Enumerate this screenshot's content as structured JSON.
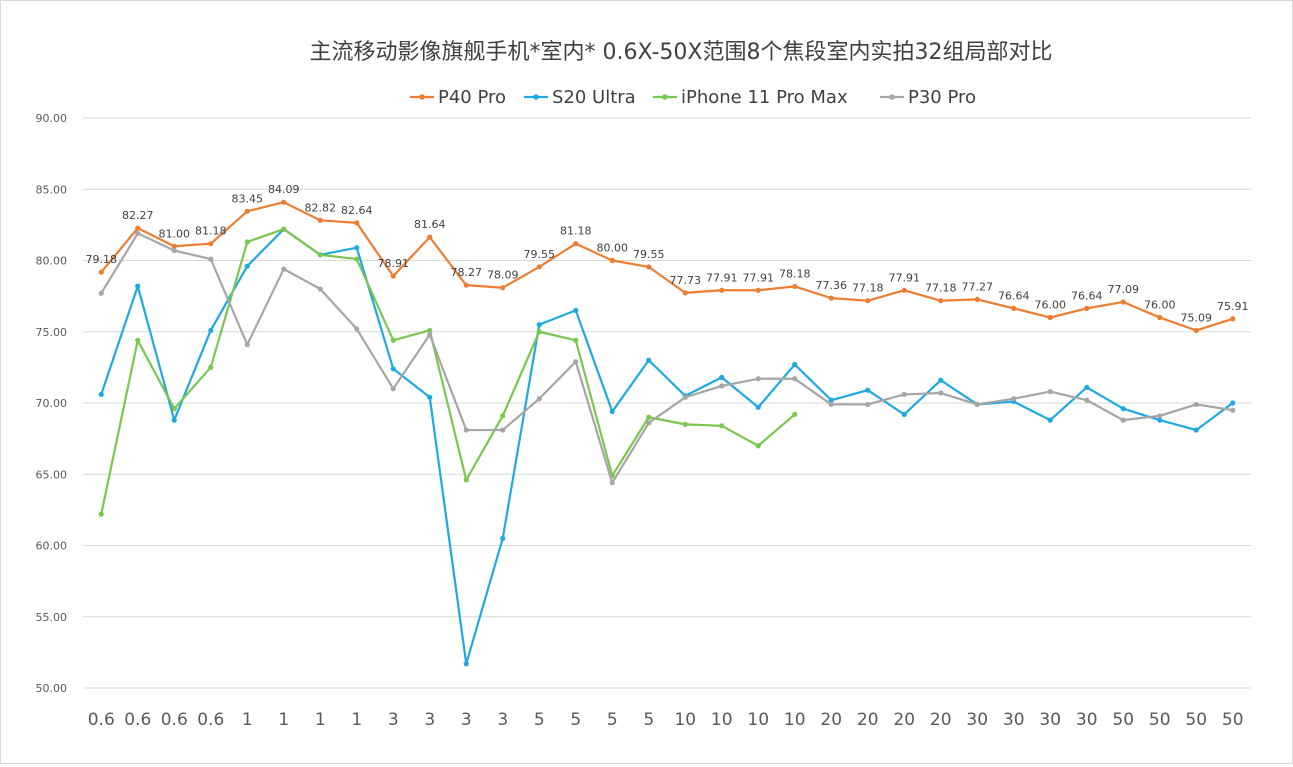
{
  "chart_data": {
    "type": "line",
    "title": "主流移动影像旗舰手机*室内* 0.6X-50X范围8个焦段室内实拍32组局部对比",
    "xlabel": "",
    "ylabel": "",
    "categories": [
      "0.6",
      "0.6",
      "0.6",
      "0.6",
      "1",
      "1",
      "1",
      "1",
      "3",
      "3",
      "3",
      "3",
      "5",
      "5",
      "5",
      "5",
      "10",
      "10",
      "10",
      "10",
      "20",
      "20",
      "20",
      "20",
      "30",
      "30",
      "30",
      "30",
      "50",
      "50",
      "50",
      "50"
    ],
    "ylim": [
      50,
      90
    ],
    "yticks": [
      "50.00",
      "55.00",
      "60.00",
      "65.00",
      "70.00",
      "75.00",
      "80.00",
      "85.00",
      "90.00"
    ],
    "grid": true,
    "legend_position": "top",
    "series": [
      {
        "name": "P40 Pro",
        "color": "#ed7d31",
        "values": [
          79.18,
          82.27,
          81.0,
          81.18,
          83.45,
          84.09,
          82.82,
          82.64,
          78.91,
          81.64,
          78.27,
          78.09,
          79.55,
          81.18,
          80.0,
          79.55,
          77.73,
          77.91,
          77.91,
          78.18,
          77.36,
          77.18,
          77.91,
          77.18,
          77.27,
          76.64,
          76.0,
          76.64,
          77.09,
          76.0,
          75.09,
          75.91
        ],
        "data_labels": [
          "79.18",
          "82.27",
          "81.00",
          "81.18",
          "83.45",
          "84.09",
          "82.82",
          "82.64",
          "78.91",
          "81.64",
          "78.27",
          "78.09",
          "79.55",
          "81.18",
          "80.00",
          "79.55",
          "77.73",
          "77.91",
          "77.91",
          "78.18",
          "77.36",
          "77.18",
          "77.91",
          "77.18",
          "77.27",
          "76.64",
          "76.00",
          "76.64",
          "77.09",
          "76.00",
          "75.09",
          "75.91"
        ]
      },
      {
        "name": "S20 Ultra",
        "color": "#1fa9e1",
        "values": [
          70.6,
          78.2,
          68.8,
          75.1,
          79.6,
          82.2,
          80.4,
          80.9,
          72.4,
          70.4,
          51.7,
          60.5,
          75.5,
          76.5,
          69.4,
          73.0,
          70.5,
          71.8,
          69.7,
          72.7,
          70.2,
          70.9,
          69.2,
          71.6,
          69.9,
          70.1,
          68.8,
          71.1,
          69.6,
          68.8,
          68.1,
          70.0
        ]
      },
      {
        "name": "iPhone 11 Pro Max",
        "color": "#7ac74f",
        "values": [
          62.2,
          74.4,
          69.6,
          72.5,
          81.3,
          82.2,
          80.4,
          80.1,
          74.4,
          75.1,
          64.6,
          69.1,
          75.0,
          74.4,
          64.9,
          69.0,
          68.5,
          68.4,
          67.0,
          69.2,
          null,
          null,
          null,
          null,
          null,
          null,
          null,
          null,
          null,
          null,
          null,
          null
        ]
      },
      {
        "name": "P30 Pro",
        "color": "#a6a6a6",
        "values": [
          77.7,
          81.9,
          80.7,
          80.1,
          74.1,
          79.4,
          78.0,
          75.2,
          71.0,
          74.8,
          68.1,
          68.1,
          70.3,
          72.9,
          64.4,
          68.6,
          70.4,
          71.2,
          71.7,
          71.7,
          69.9,
          69.9,
          70.6,
          70.7,
          69.9,
          70.3,
          70.8,
          70.2,
          68.8,
          69.1,
          69.9,
          69.5
        ]
      }
    ]
  }
}
